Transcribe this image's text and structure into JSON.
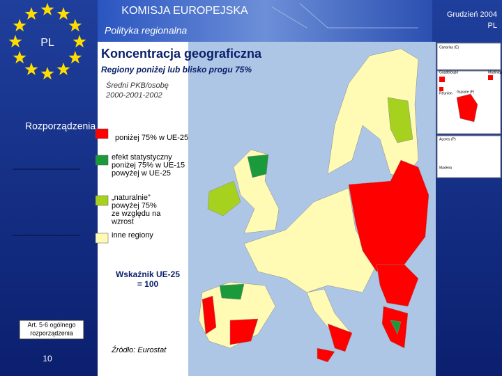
{
  "header": {
    "org": "KOMISJA EUROPEJSKA",
    "unit": "Polityka regionalna",
    "flag": "PL",
    "date": "Grudzień 2004",
    "lang": "PL"
  },
  "title": "Koncentracja geograficzna",
  "subtitle": "Regiony poniżej lub blisko progu 75%",
  "measure": {
    "name": "Średni PKB/osobę",
    "period": "2000-2001-2002"
  },
  "sidebar": {
    "heading": "Rozporządzenia",
    "note": [
      "Art. 5-6 ogólnego",
      "rozporządzenia"
    ],
    "page": "10"
  },
  "legend": [
    {
      "lines": [
        "poniżej 75% w UE-25"
      ],
      "color": "#ff0000"
    },
    {
      "lines": [
        "efekt statystyczny",
        "poniżej 75% w  UE-15",
        "powyżej w UE-25"
      ],
      "color": "#1a9a3a"
    },
    {
      "lines": [
        "„naturalnie”",
        " powyżej 75%",
        "ze względu na",
        "wzrost"
      ],
      "color": "#a6d11e"
    },
    {
      "lines": [
        "inne regiony"
      ],
      "color": "#fffbb4"
    }
  ],
  "index_note": [
    "Wskaźnik UE-25",
    "= 100"
  ],
  "source": "Źródło: Eurostat",
  "insets": [
    "Canarias (E)",
    "Guadeloupe",
    "Martinique",
    "Réunion",
    "Guyane (F)",
    "Açores (P)",
    "Madeira"
  ]
}
